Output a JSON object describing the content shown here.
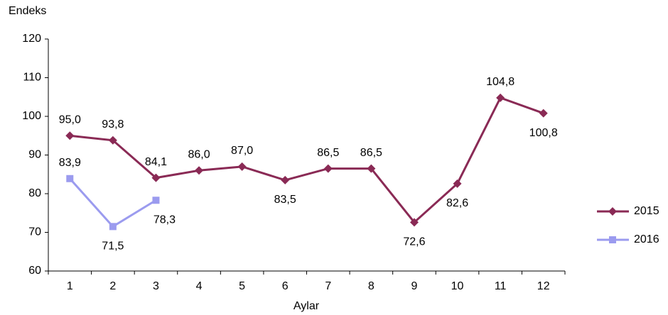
{
  "chart_data": {
    "type": "line",
    "y_label": "Endeks",
    "x_label": "Aylar",
    "categories": [
      "1",
      "2",
      "3",
      "4",
      "5",
      "6",
      "7",
      "8",
      "9",
      "10",
      "11",
      "12"
    ],
    "series": [
      {
        "name": "2015",
        "color": "#8a2a55",
        "marker": "diamond",
        "values": [
          95.0,
          93.8,
          84.1,
          86.0,
          87.0,
          83.5,
          86.5,
          86.5,
          72.6,
          82.6,
          104.8,
          100.8
        ],
        "value_labels": [
          "95,0",
          "93,8",
          "84,1",
          "86,0",
          "87,0",
          "83,5",
          "86,5",
          "86,5",
          "72,6",
          "82,6",
          "104,8",
          "100,8"
        ]
      },
      {
        "name": "2016",
        "color": "#9b9bef",
        "marker": "square",
        "values": [
          83.9,
          71.5,
          78.3,
          null,
          null,
          null,
          null,
          null,
          null,
          null,
          null,
          null
        ],
        "value_labels": [
          "83,9",
          "71,5",
          "78,3",
          null,
          null,
          null,
          null,
          null,
          null,
          null,
          null,
          null
        ]
      }
    ],
    "ylim": [
      60,
      120
    ],
    "yticks": [
      60,
      70,
      80,
      90,
      100,
      110,
      120
    ],
    "legend": "right"
  }
}
